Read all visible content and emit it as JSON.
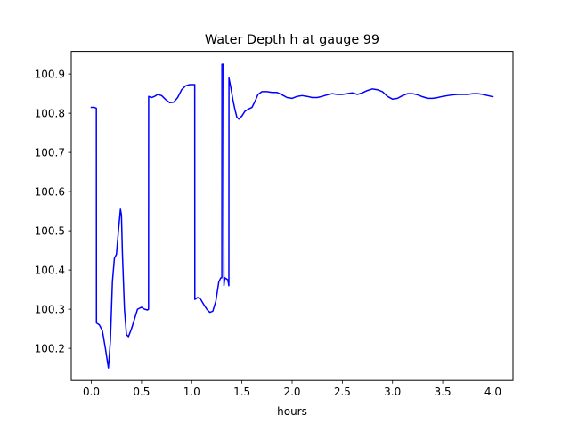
{
  "chart_data": {
    "type": "line",
    "title": "Water Depth h at gauge 99",
    "xlabel": "hours",
    "ylabel": "",
    "xlim": [
      -0.2,
      4.2
    ],
    "ylim": [
      100.118,
      100.958
    ],
    "xticks": [
      0.0,
      0.5,
      1.0,
      1.5,
      2.0,
      2.5,
      3.0,
      3.5,
      4.0
    ],
    "xtick_labels": [
      "0.0",
      "0.5",
      "1.0",
      "1.5",
      "2.0",
      "2.5",
      "3.0",
      "3.5",
      "4.0"
    ],
    "yticks": [
      100.2,
      100.3,
      100.4,
      100.5,
      100.6,
      100.7,
      100.8,
      100.9
    ],
    "ytick_labels": [
      "100.2",
      "100.3",
      "100.4",
      "100.5",
      "100.6",
      "100.7",
      "100.8",
      "100.9"
    ],
    "grid": false,
    "series": [
      {
        "color": "#0000ff",
        "x": [
          0.0,
          0.03,
          0.05,
          0.051,
          0.08,
          0.11,
          0.14,
          0.17,
          0.19,
          0.21,
          0.23,
          0.25,
          0.27,
          0.29,
          0.3,
          0.31,
          0.33,
          0.35,
          0.37,
          0.4,
          0.43,
          0.46,
          0.5,
          0.53,
          0.56,
          0.57,
          0.571,
          0.6,
          0.63,
          0.66,
          0.7,
          0.74,
          0.78,
          0.82,
          0.86,
          0.9,
          0.94,
          0.98,
          1.01,
          1.03,
          1.031,
          1.06,
          1.09,
          1.12,
          1.15,
          1.18,
          1.21,
          1.24,
          1.27,
          1.29,
          1.3,
          1.301,
          1.315,
          1.32,
          1.321,
          1.33,
          1.36,
          1.37,
          1.371,
          1.39,
          1.41,
          1.43,
          1.45,
          1.47,
          1.5,
          1.53,
          1.56,
          1.6,
          1.63,
          1.66,
          1.7,
          1.75,
          1.8,
          1.85,
          1.9,
          1.95,
          2.0,
          2.05,
          2.1,
          2.15,
          2.2,
          2.25,
          2.3,
          2.35,
          2.4,
          2.45,
          2.5,
          2.55,
          2.6,
          2.65,
          2.7,
          2.75,
          2.8,
          2.85,
          2.9,
          2.95,
          3.0,
          3.05,
          3.1,
          3.15,
          3.2,
          3.25,
          3.3,
          3.35,
          3.4,
          3.45,
          3.5,
          3.55,
          3.6,
          3.65,
          3.7,
          3.75,
          3.8,
          3.85,
          3.9,
          3.95,
          4.0
        ],
        "y": [
          100.815,
          100.815,
          100.813,
          100.265,
          100.26,
          100.245,
          100.2,
          100.15,
          100.22,
          100.37,
          100.43,
          100.44,
          100.5,
          100.555,
          100.54,
          100.44,
          100.3,
          100.235,
          100.23,
          100.25,
          100.275,
          100.3,
          100.305,
          100.3,
          100.298,
          100.3,
          100.843,
          100.84,
          100.843,
          100.848,
          100.845,
          100.835,
          100.827,
          100.828,
          100.84,
          100.86,
          100.87,
          100.873,
          100.873,
          100.873,
          100.325,
          100.33,
          100.325,
          100.312,
          100.3,
          100.292,
          100.295,
          100.32,
          100.37,
          100.38,
          100.38,
          100.925,
          100.925,
          100.4,
          100.36,
          100.38,
          100.375,
          100.36,
          100.89,
          100.865,
          100.835,
          100.81,
          100.79,
          100.785,
          100.793,
          100.805,
          100.81,
          100.815,
          100.83,
          100.848,
          100.855,
          100.855,
          100.853,
          100.853,
          100.847,
          100.84,
          100.838,
          100.843,
          100.845,
          100.843,
          100.84,
          100.84,
          100.843,
          100.847,
          100.85,
          100.848,
          100.848,
          100.85,
          100.852,
          100.848,
          100.852,
          100.858,
          100.862,
          100.86,
          100.855,
          100.843,
          100.836,
          100.838,
          100.845,
          100.85,
          100.85,
          100.847,
          100.842,
          100.838,
          100.838,
          100.84,
          100.843,
          100.845,
          100.847,
          100.848,
          100.848,
          100.848,
          100.85,
          100.85,
          100.848,
          100.845,
          100.842
        ]
      }
    ]
  }
}
